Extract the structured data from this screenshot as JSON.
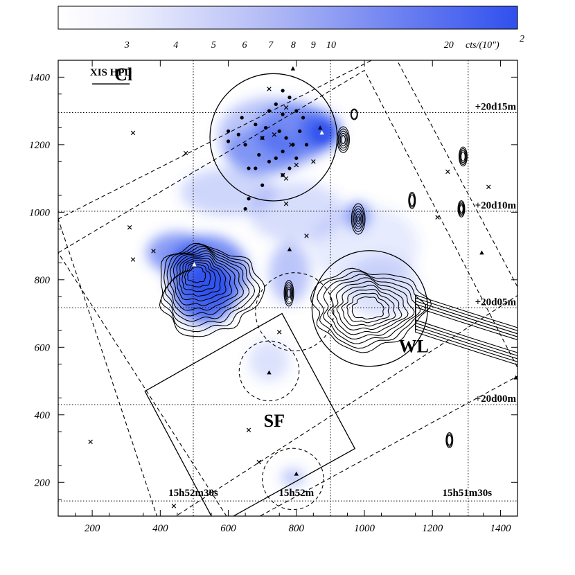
{
  "chart_data": {
    "type": "heatmap",
    "title": "",
    "xlabel": "",
    "ylabel": "",
    "xlim": [
      100,
      1450
    ],
    "ylim": [
      100,
      1450
    ],
    "x_ticks": [
      200,
      400,
      600,
      800,
      1000,
      1200,
      1400
    ],
    "y_ticks": [
      200,
      400,
      600,
      800,
      1000,
      1200,
      1400
    ],
    "colorbar": {
      "unit": "cts/(10\")",
      "unit_exponent": "2",
      "tick_labels": [
        "3",
        "4",
        "5",
        "6",
        "7",
        "8",
        "9",
        "10",
        "20"
      ],
      "tick_values": [
        3,
        4,
        5,
        6,
        7,
        8,
        9,
        10,
        20
      ],
      "range": [
        2,
        30
      ],
      "color_low": "#ffffff",
      "color_high": "#3050ee"
    },
    "ra_labels": [
      {
        "text": "15h52m30s",
        "x": 497
      },
      {
        "text": "15h52m",
        "x": 800
      },
      {
        "text": "15h51m30s",
        "x": 1302
      }
    ],
    "dec_labels": [
      {
        "text": "+20d15m",
        "y": 1295
      },
      {
        "text": "+20d10m",
        "y": 1003
      },
      {
        "text": "+20d05m",
        "y": 717
      },
      {
        "text": "+20d00m",
        "y": 430
      }
    ],
    "ra_grid_x": [
      497,
      900,
      1305
    ],
    "dec_grid_y": [
      1295,
      1003,
      717,
      430,
      145
    ],
    "regions": [
      {
        "label": "Cl",
        "shape": "circle",
        "center": [
          733,
          1222
        ],
        "radius": 187,
        "label_at": [
          292,
          1390
        ]
      },
      {
        "label": "WL",
        "shape": "circle",
        "center": [
          1016,
          715
        ],
        "radius": 170,
        "label_at": [
          1145,
          585
        ]
      },
      {
        "label": "SF",
        "shape": "box",
        "corners": [
          [
            355,
            470
          ],
          [
            758,
            700
          ],
          [
            972,
            300
          ],
          [
            565,
            72
          ]
        ],
        "label_at": [
          735,
          365
        ]
      }
    ],
    "dashed_circles": [
      {
        "center": [
          795,
          705
        ],
        "radius": 115
      },
      {
        "center": [
          720,
          530
        ],
        "radius": 88
      },
      {
        "center": [
          790,
          210
        ],
        "radius": 90
      }
    ],
    "hpd_label": "XIS HPD",
    "hpd_bar_x": [
      200,
      310
    ],
    "hpd_bar_y": 1380
  },
  "colors": {
    "colormap_high": "#3050ee",
    "colormap_mid": "#9aa5f5",
    "colormap_low": "#ffffff",
    "lines": "#000000"
  }
}
